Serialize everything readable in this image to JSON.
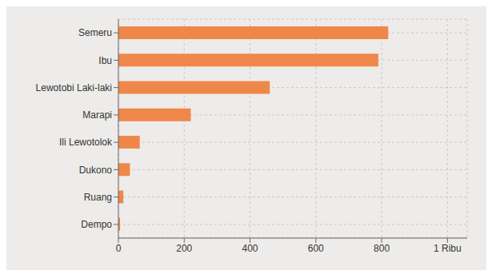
{
  "chart_data": {
    "type": "bar",
    "orientation": "horizontal",
    "categories": [
      "Dempo",
      "Ruang",
      "Dukono",
      "Ili Lewotolok",
      "Marapi",
      "Lewotobi Laki-laki",
      "Ibu",
      "Semeru"
    ],
    "values": [
      5,
      15,
      35,
      65,
      220,
      460,
      790,
      820
    ],
    "color": "#f0874a",
    "xlim": [
      0,
      1060
    ],
    "xticks": [
      0,
      200,
      400,
      600,
      800,
      {
        "value": 1000,
        "label": "1 Ribu"
      }
    ],
    "grid": true
  }
}
